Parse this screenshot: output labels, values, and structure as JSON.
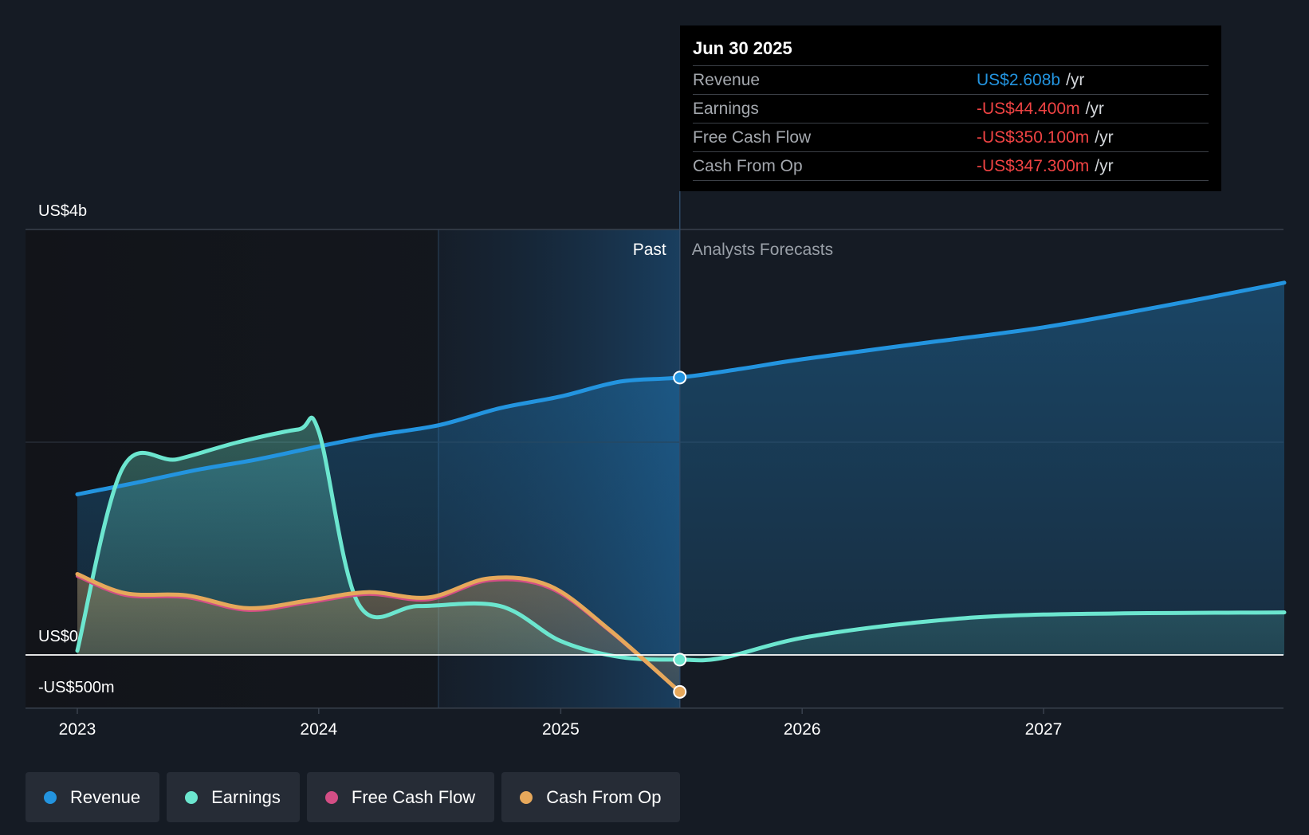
{
  "colors": {
    "revenue": "#2394df",
    "earnings": "#6ce6cf",
    "free_cash_flow": "#d34e85",
    "cash_from_op": "#e6a85b",
    "negative": "#ef4343",
    "background": "#151b24"
  },
  "tooltip": {
    "date": "Jun 30 2025",
    "rows": [
      {
        "label": "Revenue",
        "value": "US$2.608b",
        "unit": "/yr",
        "color": "#2394df"
      },
      {
        "label": "Earnings",
        "value": "-US$44.400m",
        "unit": "/yr",
        "color": "#ef4343"
      },
      {
        "label": "Free Cash Flow",
        "value": "-US$350.100m",
        "unit": "/yr",
        "color": "#ef4343"
      },
      {
        "label": "Cash From Op",
        "value": "-US$347.300m",
        "unit": "/yr",
        "color": "#ef4343"
      }
    ]
  },
  "legend": [
    {
      "label": "Revenue",
      "color": "#2394df"
    },
    {
      "label": "Earnings",
      "color": "#6ce6cf"
    },
    {
      "label": "Free Cash Flow",
      "color": "#d34e85"
    },
    {
      "label": "Cash From Op",
      "color": "#e6a85b"
    }
  ],
  "chart_data": {
    "type": "area",
    "y_ticks": [
      {
        "value": 4000,
        "label": "US$4b"
      },
      {
        "value": 0,
        "label": "US$0"
      },
      {
        "value": -500,
        "label": "-US$500m"
      }
    ],
    "x_ticks": [
      {
        "value": "2023-01-01",
        "label": "2023"
      },
      {
        "value": "2024-01-01",
        "label": "2024"
      },
      {
        "value": "2025-01-01",
        "label": "2025"
      },
      {
        "value": "2026-01-01",
        "label": "2026"
      },
      {
        "value": "2027-01-01",
        "label": "2027"
      }
    ],
    "xlim": [
      "2022-10-15",
      "2027-12-31"
    ],
    "ylim": [
      -500,
      4000
    ],
    "grid": true,
    "past_label": "Past",
    "forecast_label": "Analysts Forecasts",
    "forecast_start": "2025-06-30",
    "series": [
      {
        "name": "Revenue",
        "key": "revenue",
        "points": [
          [
            "2023-01-01",
            1510
          ],
          [
            "2023-04-01",
            1620
          ],
          [
            "2023-07-01",
            1740
          ],
          [
            "2023-10-01",
            1840
          ],
          [
            "2024-01-01",
            1960
          ],
          [
            "2024-04-01",
            2070
          ],
          [
            "2024-07-01",
            2160
          ],
          [
            "2024-10-01",
            2320
          ],
          [
            "2025-01-01",
            2430
          ],
          [
            "2025-04-01",
            2570
          ],
          [
            "2025-06-30",
            2608
          ],
          [
            "2025-10-01",
            2690
          ],
          [
            "2026-01-01",
            2780
          ],
          [
            "2026-07-01",
            2930
          ],
          [
            "2027-01-01",
            3080
          ],
          [
            "2027-07-01",
            3280
          ],
          [
            "2027-12-31",
            3500
          ]
        ]
      },
      {
        "name": "Earnings",
        "key": "earnings",
        "points": [
          [
            "2023-01-01",
            40
          ],
          [
            "2023-03-10",
            1750
          ],
          [
            "2023-06-01",
            1840
          ],
          [
            "2023-09-01",
            2000
          ],
          [
            "2023-12-01",
            2120
          ],
          [
            "2024-01-01",
            2100
          ],
          [
            "2024-03-01",
            480
          ],
          [
            "2024-06-01",
            460
          ],
          [
            "2024-10-01",
            460
          ],
          [
            "2025-01-01",
            130
          ],
          [
            "2025-04-01",
            -20
          ],
          [
            "2025-06-30",
            -44
          ],
          [
            "2025-09-01",
            -30
          ],
          [
            "2026-01-01",
            160
          ],
          [
            "2026-07-01",
            310
          ],
          [
            "2027-01-01",
            380
          ],
          [
            "2027-12-31",
            400
          ]
        ]
      },
      {
        "name": "Free Cash Flow",
        "key": "free_cash_flow",
        "points": [
          [
            "2023-01-01",
            740
          ],
          [
            "2023-03-15",
            560
          ],
          [
            "2023-06-15",
            540
          ],
          [
            "2023-09-15",
            420
          ],
          [
            "2023-12-15",
            490
          ],
          [
            "2024-03-15",
            570
          ],
          [
            "2024-06-15",
            520
          ],
          [
            "2024-09-15",
            700
          ],
          [
            "2024-12-15",
            630
          ],
          [
            "2025-03-15",
            230
          ],
          [
            "2025-06-30",
            -350
          ]
        ]
      },
      {
        "name": "Cash From Op",
        "key": "cash_from_op",
        "points": [
          [
            "2023-01-01",
            760
          ],
          [
            "2023-03-15",
            580
          ],
          [
            "2023-06-15",
            560
          ],
          [
            "2023-09-15",
            440
          ],
          [
            "2023-12-15",
            510
          ],
          [
            "2024-03-15",
            590
          ],
          [
            "2024-06-15",
            540
          ],
          [
            "2024-09-15",
            720
          ],
          [
            "2024-12-15",
            650
          ],
          [
            "2025-03-15",
            240
          ],
          [
            "2025-06-30",
            -347
          ]
        ]
      }
    ]
  }
}
